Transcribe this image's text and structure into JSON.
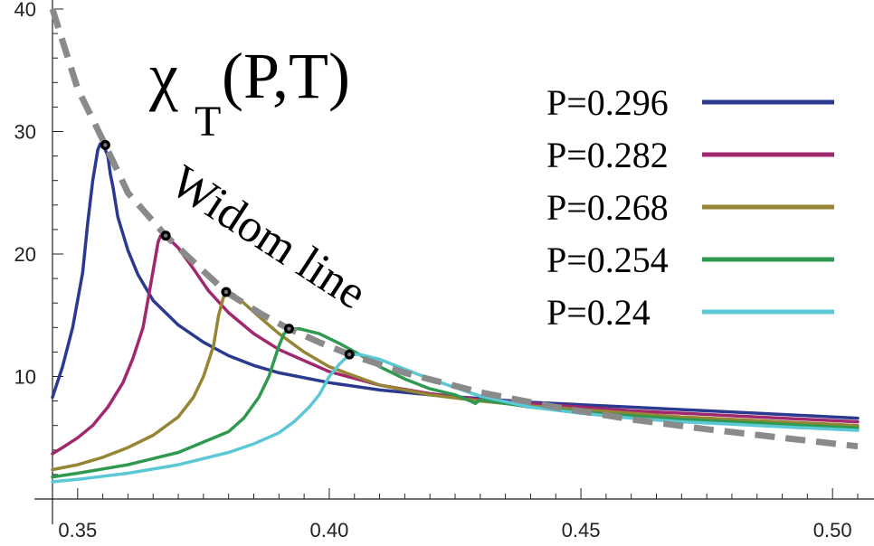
{
  "chart_data": {
    "type": "line",
    "title": "χ",
    "title_subscript": "T",
    "title_suffix": "(P,T)",
    "xlabel": "",
    "ylabel": "",
    "xlim": [
      0.345,
      0.505
    ],
    "ylim": [
      0,
      40
    ],
    "x_ticks": [
      0.35,
      0.4,
      0.45,
      0.5
    ],
    "x_tick_labels": [
      "0.35",
      "0.40",
      "0.45",
      "0.50"
    ],
    "y_ticks": [
      10,
      20,
      30,
      40
    ],
    "y_tick_labels": [
      "10",
      "20",
      "30",
      "40"
    ],
    "legend_position": "top-right",
    "annotation": "Widom line",
    "series": [
      {
        "name": "P=0.296",
        "color": "#2b3a8f",
        "x": [
          0.345,
          0.347,
          0.349,
          0.351,
          0.352,
          0.353,
          0.354,
          0.3545,
          0.355,
          0.356,
          0.3565,
          0.357,
          0.358,
          0.36,
          0.362,
          0.365,
          0.37,
          0.375,
          0.38,
          0.385,
          0.39,
          0.4,
          0.41,
          0.42,
          0.43,
          0.44,
          0.45,
          0.46,
          0.47,
          0.48,
          0.49,
          0.5,
          0.505
        ],
        "y": [
          8.3,
          10.8,
          14.0,
          18.5,
          22.5,
          26.0,
          28.5,
          29.0,
          29.0,
          28.0,
          26.5,
          25.5,
          23.0,
          20.3,
          18.3,
          16.2,
          14.2,
          12.8,
          11.7,
          10.9,
          10.3,
          9.5,
          8.9,
          8.5,
          8.2,
          7.9,
          7.7,
          7.5,
          7.3,
          7.1,
          6.9,
          6.7,
          6.6
        ]
      },
      {
        "name": "P=0.282",
        "color": "#a0296e",
        "x": [
          0.345,
          0.347,
          0.35,
          0.353,
          0.356,
          0.359,
          0.361,
          0.363,
          0.3645,
          0.366,
          0.3665,
          0.367,
          0.368,
          0.37,
          0.373,
          0.376,
          0.38,
          0.385,
          0.39,
          0.4,
          0.41,
          0.42,
          0.43,
          0.44,
          0.45,
          0.46,
          0.47,
          0.48,
          0.49,
          0.5,
          0.505
        ],
        "y": [
          3.7,
          4.2,
          5.0,
          6.0,
          7.5,
          9.5,
          11.5,
          14.0,
          17.5,
          21.0,
          21.5,
          21.5,
          21.3,
          20.5,
          18.8,
          17.0,
          15.2,
          13.5,
          12.2,
          10.4,
          9.3,
          8.6,
          8.1,
          7.8,
          7.5,
          7.2,
          7.0,
          6.8,
          6.6,
          6.4,
          6.3
        ]
      },
      {
        "name": "P=0.268",
        "color": "#958535",
        "x": [
          0.345,
          0.35,
          0.355,
          0.36,
          0.365,
          0.37,
          0.373,
          0.375,
          0.377,
          0.378,
          0.379,
          0.38,
          0.381,
          0.383,
          0.386,
          0.39,
          0.395,
          0.4,
          0.41,
          0.42,
          0.43,
          0.44,
          0.45,
          0.46,
          0.47,
          0.48,
          0.49,
          0.5,
          0.505
        ],
        "y": [
          2.4,
          2.8,
          3.4,
          4.2,
          5.2,
          6.7,
          8.3,
          10.0,
          12.5,
          15.0,
          16.5,
          16.9,
          16.7,
          16.0,
          14.9,
          13.5,
          12.0,
          10.8,
          9.3,
          8.5,
          8.0,
          7.6,
          7.3,
          7.0,
          6.7,
          6.5,
          6.3,
          6.1,
          6.0
        ]
      },
      {
        "name": "P=0.254",
        "color": "#2f9a4f",
        "x": [
          0.345,
          0.35,
          0.36,
          0.37,
          0.38,
          0.383,
          0.386,
          0.388,
          0.39,
          0.391,
          0.392,
          0.394,
          0.398,
          0.402,
          0.406,
          0.41,
          0.415,
          0.42,
          0.425,
          0.428,
          0.429,
          0.43,
          0.44,
          0.45,
          0.46,
          0.47,
          0.48,
          0.49,
          0.5,
          0.505
        ],
        "y": [
          1.8,
          2.1,
          2.8,
          3.8,
          5.5,
          6.6,
          8.3,
          10.0,
          12.5,
          13.5,
          13.9,
          13.9,
          13.5,
          12.7,
          11.8,
          10.8,
          9.8,
          9.0,
          8.5,
          8.0,
          7.8,
          8.1,
          7.5,
          7.1,
          6.8,
          6.5,
          6.3,
          6.1,
          5.9,
          5.8
        ]
      },
      {
        "name": "P=0.24",
        "color": "#5cc8d6",
        "x": [
          0.345,
          0.35,
          0.36,
          0.37,
          0.38,
          0.385,
          0.39,
          0.393,
          0.396,
          0.398,
          0.4,
          0.402,
          0.404,
          0.406,
          0.41,
          0.415,
          0.42,
          0.425,
          0.43,
          0.44,
          0.45,
          0.46,
          0.47,
          0.48,
          0.49,
          0.5,
          0.505
        ],
        "y": [
          1.4,
          1.6,
          2.1,
          2.8,
          3.8,
          4.5,
          5.4,
          6.3,
          7.5,
          8.5,
          10.0,
          11.0,
          11.8,
          11.8,
          11.4,
          10.6,
          9.8,
          9.1,
          8.4,
          7.5,
          7.0,
          6.6,
          6.3,
          6.1,
          5.9,
          5.7,
          5.6
        ]
      },
      {
        "name": "Widom line",
        "color": "#8a8a8a",
        "dashed": true,
        "x": [
          0.345,
          0.35,
          0.3555,
          0.36,
          0.3675,
          0.375,
          0.3795,
          0.3865,
          0.392,
          0.398,
          0.404,
          0.415,
          0.43,
          0.445,
          0.46,
          0.475,
          0.49,
          0.505
        ],
        "y": [
          40.0,
          33.5,
          28.9,
          25.0,
          21.5,
          18.6,
          16.9,
          15.1,
          13.9,
          12.8,
          11.8,
          10.3,
          8.7,
          7.5,
          6.5,
          5.7,
          5.0,
          4.3
        ]
      }
    ],
    "peaks": [
      {
        "x": 0.3555,
        "y": 28.9
      },
      {
        "x": 0.3675,
        "y": 21.5
      },
      {
        "x": 0.3795,
        "y": 16.9
      },
      {
        "x": 0.392,
        "y": 13.9
      },
      {
        "x": 0.404,
        "y": 11.8
      }
    ]
  }
}
